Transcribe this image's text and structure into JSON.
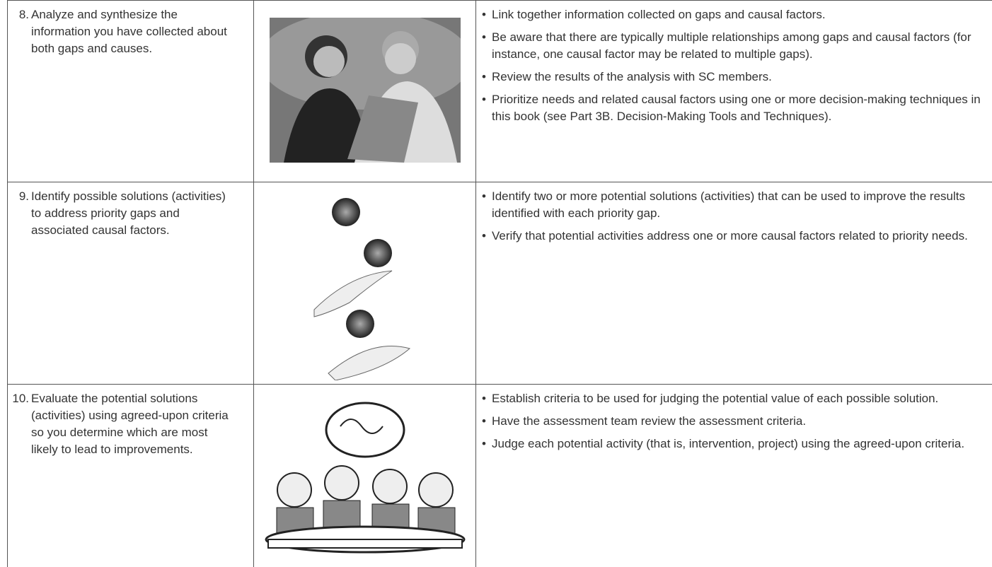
{
  "table": {
    "rows": [
      {
        "number": "8.",
        "step": "Analyze and synthesize the information you have collected about both gaps and causes.",
        "bullets": [
          "Link together information collected on gaps and causal factors.",
          "Be aware that there are typically multiple relationships among gaps and causal factors (for instance, one causal factor may be related to multiple gaps).",
          "Review the results of the analysis with SC members.",
          "Prioritize needs and related causal factors using one or more decision-making techniques in this book (see Part 3B. Decision-Making Tools and Techniques)."
        ]
      },
      {
        "number": "9.",
        "step": "Identify possible solutions (activities) to address priority gaps and associated causal factors.",
        "bullets": [
          "Identify two or more potential solutions (activities) that can be used to improve the results identified with each priority gap.",
          "Verify that potential activities address one or more causal factors related to priority needs."
        ]
      },
      {
        "number": "10.",
        "step": "Evaluate the potential solutions (activities) using agreed-upon criteria so you determine which are most likely to lead to improvements.",
        "bullets": [
          "Establish criteria to be used for judging the potential value of each possible solution.",
          "Have the assessment team review the assessment criteria.",
          "Judge each potential activity (that is, intervention, project) using the agreed-upon criteria."
        ]
      }
    ]
  }
}
